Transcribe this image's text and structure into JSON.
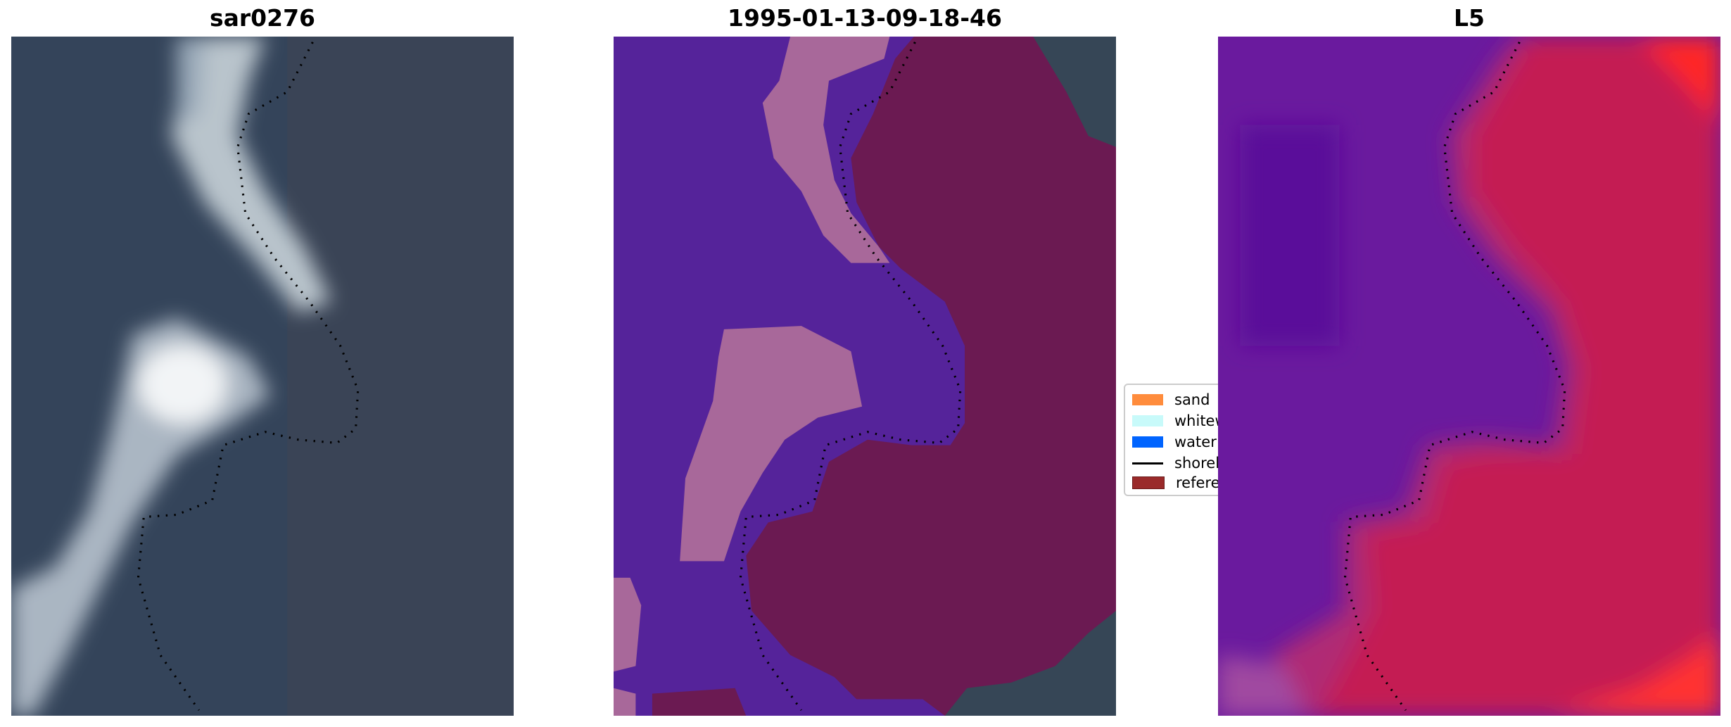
{
  "panels": [
    {
      "title": "sar0276",
      "content": "satellite-image"
    },
    {
      "title": "1995-01-13-09-18-46",
      "content": "classified-image"
    },
    {
      "title": "L5",
      "content": "probability-image"
    }
  ],
  "legend": {
    "items": [
      {
        "label": "sand",
        "color": "#ff8c3c",
        "kind": "patch"
      },
      {
        "label": "whitewater",
        "color": "#c8fafa",
        "kind": "patch"
      },
      {
        "label": "water",
        "color": "#0064ff",
        "kind": "patch"
      },
      {
        "label": "shoreline",
        "color": "#000000",
        "kind": "line"
      },
      {
        "label": "reference",
        "color": "#9a2a2a",
        "kind": "patch"
      }
    ]
  }
}
